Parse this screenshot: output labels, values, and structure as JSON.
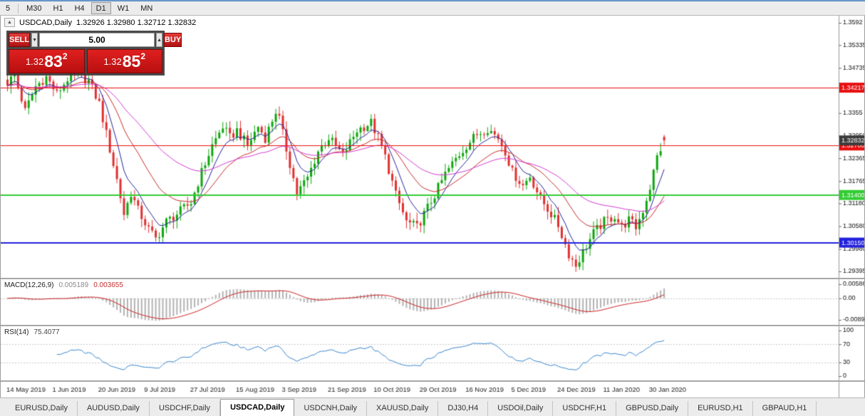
{
  "toolbar": {
    "timeframes": [
      "5",
      "M30",
      "H1",
      "H4",
      "D1",
      "W1",
      "MN"
    ],
    "active": "D1"
  },
  "icons": {
    "collapse": "▲",
    "spin_down": "▼",
    "spin_up": "▲"
  },
  "chart_header": {
    "symbol": "USDCAD,Daily",
    "ohlc": "1.32926 1.32980 1.32712 1.32832"
  },
  "trade_panel": {
    "sell": "SELL",
    "buy": "BUY",
    "volume": "5.00",
    "sell_price": {
      "prefix": "1.32",
      "big": "83",
      "sup": "2"
    },
    "buy_price": {
      "prefix": "1.32",
      "big": "85",
      "sup": "2"
    }
  },
  "tabs": {
    "items": [
      "EURUSD,Daily",
      "AUDUSD,Daily",
      "USDCHF,Daily",
      "USDCAD,Daily",
      "USDCNH,Daily",
      "XAUUSD,Daily",
      "DJ30,H4",
      "USDOil,Daily",
      "USDCHF,H1",
      "GBPUSD,Daily",
      "EURUSD,H1",
      "GBPAUD,H1"
    ],
    "active_index": 3
  },
  "chart_data": {
    "type": "candlestick",
    "symbol": "USDCAD",
    "timeframe": "Daily",
    "last_ohlc": {
      "open": 1.32926,
      "high": 1.3298,
      "low": 1.32712,
      "close": 1.32832
    },
    "bar_count": 187,
    "bars_per_label": 13,
    "x_labels": [
      "14 May 2019",
      "1 Jun 2019",
      "20 Jun 2019",
      "9 Jul 2019",
      "27 Jul 2019",
      "15 Aug 2019",
      "3 Sep 2019",
      "21 Sep 2019",
      "10 Oct 2019",
      "29 Oct 2019",
      "16 Nov 2019",
      "5 Dec 2019",
      "24 Dec 2019",
      "11 Jan 2020",
      "30 Jan 2020"
    ],
    "y_axis": {
      "labels": [
        "1.3592",
        "1.35335",
        "1.34735",
        "1.3355",
        "1.32950",
        "1.32365",
        "1.31765",
        "1.31180",
        "1.30580",
        "1.29980",
        "1.29395"
      ],
      "top": 1.36107,
      "bottom": 1.29226
    },
    "levels": [
      {
        "label": "1.34217",
        "price": 1.34217,
        "color": "#e81010",
        "width": 1
      },
      {
        "label": "1.32700",
        "price": 1.327,
        "color": "#e81010",
        "width": 1
      },
      {
        "label": "1.31400",
        "price": 1.314,
        "color": "#33cc33",
        "width": 2
      },
      {
        "label": "1.30150",
        "price": 1.3015,
        "color": "#2222dd",
        "width": 2
      }
    ],
    "bid_marker": {
      "label": "1.32832",
      "price": 1.32832,
      "color": "#3c3c3c"
    },
    "candle_colors": {
      "up": "#0ea60e",
      "down": "#e03030"
    },
    "close_anchors": [
      [
        0,
        1.3435
      ],
      [
        2,
        1.3455
      ],
      [
        5,
        1.336
      ],
      [
        8,
        1.3425
      ],
      [
        11,
        1.345
      ],
      [
        14,
        1.3405
      ],
      [
        17,
        1.3445
      ],
      [
        20,
        1.3455
      ],
      [
        23,
        1.344
      ],
      [
        26,
        1.338
      ],
      [
        28,
        1.33
      ],
      [
        31,
        1.318
      ],
      [
        33,
        1.309
      ],
      [
        35,
        1.3145
      ],
      [
        37,
        1.31
      ],
      [
        40,
        1.305
      ],
      [
        42,
        1.3025
      ],
      [
        45,
        1.307
      ],
      [
        48,
        1.309
      ],
      [
        52,
        1.312
      ],
      [
        55,
        1.32
      ],
      [
        58,
        1.327
      ],
      [
        61,
        1.332
      ],
      [
        63,
        1.329
      ],
      [
        65,
        1.331
      ],
      [
        68,
        1.327
      ],
      [
        71,
        1.332
      ],
      [
        73,
        1.329
      ],
      [
        76,
        1.336
      ],
      [
        77,
        1.334
      ],
      [
        79,
        1.326
      ],
      [
        82,
        1.3145
      ],
      [
        85,
        1.3185
      ],
      [
        88,
        1.3255
      ],
      [
        91,
        1.329
      ],
      [
        95,
        1.3245
      ],
      [
        99,
        1.331
      ],
      [
        103,
        1.333
      ],
      [
        105,
        1.329
      ],
      [
        107,
        1.324
      ],
      [
        110,
        1.314
      ],
      [
        113,
        1.307
      ],
      [
        116,
        1.3055
      ],
      [
        118,
        1.309
      ],
      [
        121,
        1.314
      ],
      [
        124,
        1.3195
      ],
      [
        127,
        1.3235
      ],
      [
        130,
        1.327
      ],
      [
        133,
        1.33
      ],
      [
        136,
        1.3315
      ],
      [
        139,
        1.329
      ],
      [
        141,
        1.3255
      ],
      [
        143,
        1.32
      ],
      [
        146,
        1.3165
      ],
      [
        148,
        1.319
      ],
      [
        151,
        1.313
      ],
      [
        154,
        1.309
      ],
      [
        156,
        1.306
      ],
      [
        159,
        1.2985
      ],
      [
        161,
        1.2955
      ],
      [
        163,
        1.299
      ],
      [
        166,
        1.304
      ],
      [
        169,
        1.307
      ],
      [
        172,
        1.3085
      ],
      [
        174,
        1.3055
      ],
      [
        176,
        1.3075
      ],
      [
        178,
        1.3055
      ],
      [
        180,
        1.31
      ],
      [
        182,
        1.316
      ],
      [
        184,
        1.324
      ],
      [
        186,
        1.32832
      ]
    ],
    "moving_averages": [
      {
        "period": 7,
        "color": "#24249c"
      },
      {
        "period": 20,
        "color": "#c92a2a"
      },
      {
        "period": 45,
        "color": "#d23bd2"
      }
    ],
    "macd": {
      "name": "MACD(12,26,9)",
      "value_main": "0.005189",
      "value_signal": "0.003655",
      "axis_labels": [
        "0.005862",
        "0.00",
        "-0.008955"
      ],
      "hist_color": "#b3b3b3",
      "signal_color": "#cc2222"
    },
    "rsi": {
      "name": "RSI(14)",
      "value": "75.4077",
      "axis_labels": [
        "100",
        "70",
        "30",
        "0"
      ],
      "level_lines": [
        70,
        30
      ],
      "line_color": "#3a87cf"
    }
  }
}
